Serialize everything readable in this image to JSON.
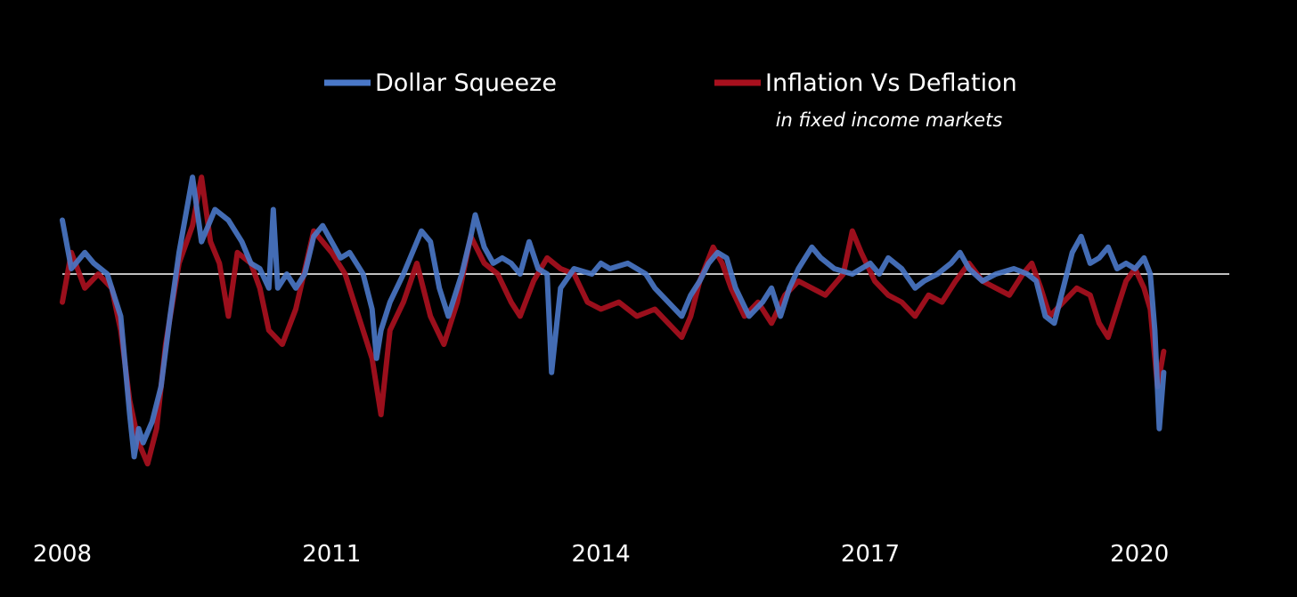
{
  "chart_data": {
    "type": "line",
    "title": "",
    "subtitle": "in fixed income markets",
    "xlabel": "",
    "ylabel": "",
    "x_ticks": [
      "2008",
      "2011",
      "2014",
      "2017",
      "2020"
    ],
    "xlim": [
      2008.0,
      2021.0
    ],
    "ylim": [
      -1.5,
      1.1
    ],
    "zero_line": true,
    "grid": false,
    "legend_position": "top-center",
    "series": [
      {
        "name": "Dollar Squeeze",
        "color": "#4a78c8",
        "points": [
          [
            2008.0,
            0.5
          ],
          [
            2008.1,
            0.05
          ],
          [
            2008.25,
            0.2
          ],
          [
            2008.35,
            0.1
          ],
          [
            2008.5,
            0.0
          ],
          [
            2008.65,
            -0.3
          ],
          [
            2008.75,
            -1.0
          ],
          [
            2008.8,
            -1.3
          ],
          [
            2008.85,
            -1.1
          ],
          [
            2008.9,
            -1.2
          ],
          [
            2009.0,
            -1.05
          ],
          [
            2009.1,
            -0.8
          ],
          [
            2009.2,
            -0.3
          ],
          [
            2009.3,
            0.2
          ],
          [
            2009.45,
            0.9
          ],
          [
            2009.55,
            0.3
          ],
          [
            2009.7,
            0.6
          ],
          [
            2009.85,
            0.5
          ],
          [
            2010.0,
            0.3
          ],
          [
            2010.1,
            0.1
          ],
          [
            2010.2,
            0.05
          ],
          [
            2010.3,
            -0.1
          ],
          [
            2010.35,
            0.6
          ],
          [
            2010.4,
            -0.1
          ],
          [
            2010.5,
            0.0
          ],
          [
            2010.6,
            -0.1
          ],
          [
            2010.7,
            0.0
          ],
          [
            2010.8,
            0.35
          ],
          [
            2010.9,
            0.45
          ],
          [
            2011.0,
            0.3
          ],
          [
            2011.1,
            0.15
          ],
          [
            2011.2,
            0.2
          ],
          [
            2011.35,
            0.0
          ],
          [
            2011.45,
            -0.25
          ],
          [
            2011.5,
            -0.6
          ],
          [
            2011.55,
            -0.4
          ],
          [
            2011.65,
            -0.2
          ],
          [
            2011.8,
            0.0
          ],
          [
            2012.0,
            0.4
          ],
          [
            2012.1,
            0.3
          ],
          [
            2012.2,
            -0.1
          ],
          [
            2012.3,
            -0.3
          ],
          [
            2012.45,
            0.0
          ],
          [
            2012.55,
            0.35
          ],
          [
            2012.6,
            0.55
          ],
          [
            2012.7,
            0.25
          ],
          [
            2012.8,
            0.1
          ],
          [
            2012.9,
            0.15
          ],
          [
            2013.0,
            0.1
          ],
          [
            2013.1,
            0.0
          ],
          [
            2013.2,
            0.3
          ],
          [
            2013.3,
            0.05
          ],
          [
            2013.4,
            0.0
          ],
          [
            2013.45,
            -0.7
          ],
          [
            2013.55,
            -0.1
          ],
          [
            2013.7,
            0.05
          ],
          [
            2013.9,
            0.0
          ],
          [
            2014.0,
            0.1
          ],
          [
            2014.1,
            0.05
          ],
          [
            2014.3,
            0.1
          ],
          [
            2014.5,
            0.0
          ],
          [
            2014.6,
            -0.1
          ],
          [
            2014.75,
            -0.2
          ],
          [
            2014.9,
            -0.3
          ],
          [
            2015.0,
            -0.15
          ],
          [
            2015.1,
            -0.05
          ],
          [
            2015.2,
            0.1
          ],
          [
            2015.3,
            0.2
          ],
          [
            2015.4,
            0.15
          ],
          [
            2015.5,
            -0.1
          ],
          [
            2015.65,
            -0.3
          ],
          [
            2015.8,
            -0.2
          ],
          [
            2015.9,
            -0.1
          ],
          [
            2016.0,
            -0.3
          ],
          [
            2016.1,
            -0.1
          ],
          [
            2016.2,
            0.05
          ],
          [
            2016.35,
            0.25
          ],
          [
            2016.45,
            0.15
          ],
          [
            2016.6,
            0.05
          ],
          [
            2016.8,
            0.0
          ],
          [
            2017.0,
            0.1
          ],
          [
            2017.1,
            0.0
          ],
          [
            2017.2,
            0.15
          ],
          [
            2017.35,
            0.05
          ],
          [
            2017.5,
            -0.1
          ],
          [
            2017.6,
            -0.05
          ],
          [
            2017.75,
            0.0
          ],
          [
            2017.9,
            0.1
          ],
          [
            2018.0,
            0.2
          ],
          [
            2018.1,
            0.05
          ],
          [
            2018.25,
            -0.05
          ],
          [
            2018.4,
            0.0
          ],
          [
            2018.6,
            0.05
          ],
          [
            2018.75,
            0.0
          ],
          [
            2018.85,
            -0.05
          ],
          [
            2018.95,
            -0.3
          ],
          [
            2019.05,
            -0.35
          ],
          [
            2019.15,
            -0.1
          ],
          [
            2019.25,
            0.2
          ],
          [
            2019.35,
            0.35
          ],
          [
            2019.45,
            0.1
          ],
          [
            2019.55,
            0.15
          ],
          [
            2019.65,
            0.25
          ],
          [
            2019.75,
            0.05
          ],
          [
            2019.85,
            0.1
          ],
          [
            2019.95,
            0.05
          ],
          [
            2020.05,
            0.15
          ],
          [
            2020.12,
            0.0
          ],
          [
            2020.17,
            -0.4
          ],
          [
            2020.22,
            -1.1
          ],
          [
            2020.27,
            -0.7
          ]
        ]
      },
      {
        "name": "Inflation Vs Deflation",
        "color": "#a8101e",
        "points": [
          [
            2008.0,
            -0.2
          ],
          [
            2008.1,
            0.2
          ],
          [
            2008.25,
            -0.1
          ],
          [
            2008.4,
            0.0
          ],
          [
            2008.55,
            -0.1
          ],
          [
            2008.65,
            -0.4
          ],
          [
            2008.75,
            -0.9
          ],
          [
            2008.85,
            -1.2
          ],
          [
            2008.95,
            -1.35
          ],
          [
            2009.05,
            -1.1
          ],
          [
            2009.15,
            -0.5
          ],
          [
            2009.3,
            0.1
          ],
          [
            2009.45,
            0.45
          ],
          [
            2009.55,
            0.9
          ],
          [
            2009.65,
            0.3
          ],
          [
            2009.75,
            0.1
          ],
          [
            2009.85,
            -0.3
          ],
          [
            2009.95,
            0.2
          ],
          [
            2010.1,
            0.1
          ],
          [
            2010.2,
            -0.1
          ],
          [
            2010.3,
            -0.4
          ],
          [
            2010.45,
            -0.5
          ],
          [
            2010.6,
            -0.25
          ],
          [
            2010.8,
            0.4
          ],
          [
            2010.9,
            0.3
          ],
          [
            2011.0,
            0.2
          ],
          [
            2011.15,
            0.0
          ],
          [
            2011.3,
            -0.3
          ],
          [
            2011.45,
            -0.6
          ],
          [
            2011.55,
            -1.0
          ],
          [
            2011.65,
            -0.4
          ],
          [
            2011.8,
            -0.2
          ],
          [
            2011.95,
            0.1
          ],
          [
            2012.1,
            -0.3
          ],
          [
            2012.25,
            -0.5
          ],
          [
            2012.4,
            -0.2
          ],
          [
            2012.55,
            0.35
          ],
          [
            2012.7,
            0.1
          ],
          [
            2012.85,
            0.0
          ],
          [
            2013.0,
            -0.2
          ],
          [
            2013.1,
            -0.3
          ],
          [
            2013.25,
            -0.05
          ],
          [
            2013.4,
            0.15
          ],
          [
            2013.55,
            0.05
          ],
          [
            2013.7,
            0.0
          ],
          [
            2013.85,
            -0.2
          ],
          [
            2014.0,
            -0.25
          ],
          [
            2014.2,
            -0.2
          ],
          [
            2014.4,
            -0.3
          ],
          [
            2014.6,
            -0.25
          ],
          [
            2014.75,
            -0.35
          ],
          [
            2014.9,
            -0.45
          ],
          [
            2015.0,
            -0.3
          ],
          [
            2015.1,
            -0.05
          ],
          [
            2015.25,
            0.25
          ],
          [
            2015.35,
            0.1
          ],
          [
            2015.45,
            -0.1
          ],
          [
            2015.6,
            -0.3
          ],
          [
            2015.75,
            -0.2
          ],
          [
            2015.9,
            -0.35
          ],
          [
            2016.05,
            -0.15
          ],
          [
            2016.2,
            -0.05
          ],
          [
            2016.35,
            -0.1
          ],
          [
            2016.5,
            -0.15
          ],
          [
            2016.7,
            0.0
          ],
          [
            2016.8,
            0.4
          ],
          [
            2016.9,
            0.2
          ],
          [
            2017.05,
            -0.05
          ],
          [
            2017.2,
            -0.15
          ],
          [
            2017.35,
            -0.2
          ],
          [
            2017.5,
            -0.3
          ],
          [
            2017.65,
            -0.15
          ],
          [
            2017.8,
            -0.2
          ],
          [
            2017.95,
            -0.05
          ],
          [
            2018.1,
            0.1
          ],
          [
            2018.25,
            -0.05
          ],
          [
            2018.4,
            -0.1
          ],
          [
            2018.55,
            -0.15
          ],
          [
            2018.7,
            0.0
          ],
          [
            2018.8,
            0.1
          ],
          [
            2018.9,
            -0.1
          ],
          [
            2019.0,
            -0.3
          ],
          [
            2019.15,
            -0.2
          ],
          [
            2019.3,
            -0.1
          ],
          [
            2019.45,
            -0.15
          ],
          [
            2019.55,
            -0.35
          ],
          [
            2019.65,
            -0.45
          ],
          [
            2019.75,
            -0.25
          ],
          [
            2019.85,
            -0.05
          ],
          [
            2019.95,
            0.05
          ],
          [
            2020.05,
            -0.1
          ],
          [
            2020.12,
            -0.25
          ],
          [
            2020.2,
            -0.8
          ],
          [
            2020.27,
            -0.55
          ]
        ]
      }
    ]
  }
}
